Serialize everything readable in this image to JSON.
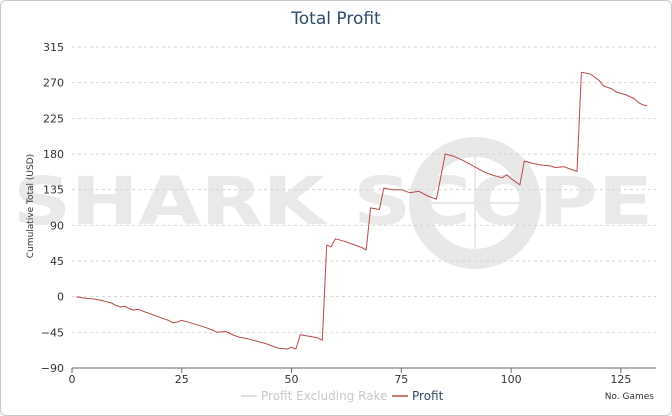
{
  "chart_data": {
    "type": "line",
    "title": "Total Profit",
    "xlabel": "No. Games",
    "ylabel": "Cumulative Total (USD)",
    "xlim": [
      0,
      133
    ],
    "ylim": [
      -90,
      315
    ],
    "x_ticks": [
      0,
      25,
      50,
      75,
      100,
      125
    ],
    "y_ticks": [
      315,
      270,
      225,
      180,
      135,
      90,
      45,
      0,
      -45,
      -90
    ],
    "grid": true,
    "legend_position": "bottom",
    "watermark": "SHARK SCOPE",
    "series": [
      {
        "name": "Profit Excluding Rake",
        "color": "#d5d5d5",
        "x": [],
        "y": []
      },
      {
        "name": "Profit",
        "color": "#b94a48",
        "x": [
          1,
          3,
          5,
          7,
          9,
          10,
          11,
          12,
          13,
          14,
          15,
          16,
          17,
          20,
          22,
          23,
          24,
          25,
          27,
          30,
          32,
          33,
          35,
          37,
          38,
          40,
          42,
          44,
          45,
          46,
          47,
          49,
          50,
          51,
          52,
          54,
          56,
          57,
          58,
          59,
          60,
          62,
          64,
          66,
          67,
          68,
          70,
          71,
          73,
          75,
          76,
          77,
          79,
          81,
          82,
          83,
          85,
          87,
          89,
          91,
          93,
          94,
          96,
          98,
          99,
          100,
          101,
          102,
          103,
          105,
          107,
          109,
          110,
          112,
          114,
          115,
          116,
          118,
          120,
          121,
          122,
          123,
          124,
          126,
          128,
          129,
          130,
          131
        ],
        "y": [
          0,
          -2,
          -3,
          -5,
          -8,
          -11,
          -13,
          -12,
          -15,
          -17,
          -16,
          -18,
          -20,
          -26,
          -30,
          -33,
          -32,
          -30,
          -33,
          -38,
          -42,
          -45,
          -44,
          -49,
          -51,
          -53,
          -56,
          -59,
          -61,
          -63,
          -65,
          -66,
          -64,
          -66,
          -48,
          -50,
          -52,
          -55,
          65,
          63,
          73,
          70,
          66,
          62,
          59,
          112,
          110,
          137,
          135,
          135,
          133,
          131,
          133,
          127,
          125,
          123,
          180,
          177,
          172,
          166,
          160,
          157,
          153,
          150,
          154,
          149,
          145,
          141,
          171,
          168,
          166,
          165,
          163,
          164,
          160,
          158,
          283,
          281,
          273,
          266,
          264,
          262,
          258,
          255,
          250,
          245,
          242,
          241
        ]
      }
    ]
  }
}
